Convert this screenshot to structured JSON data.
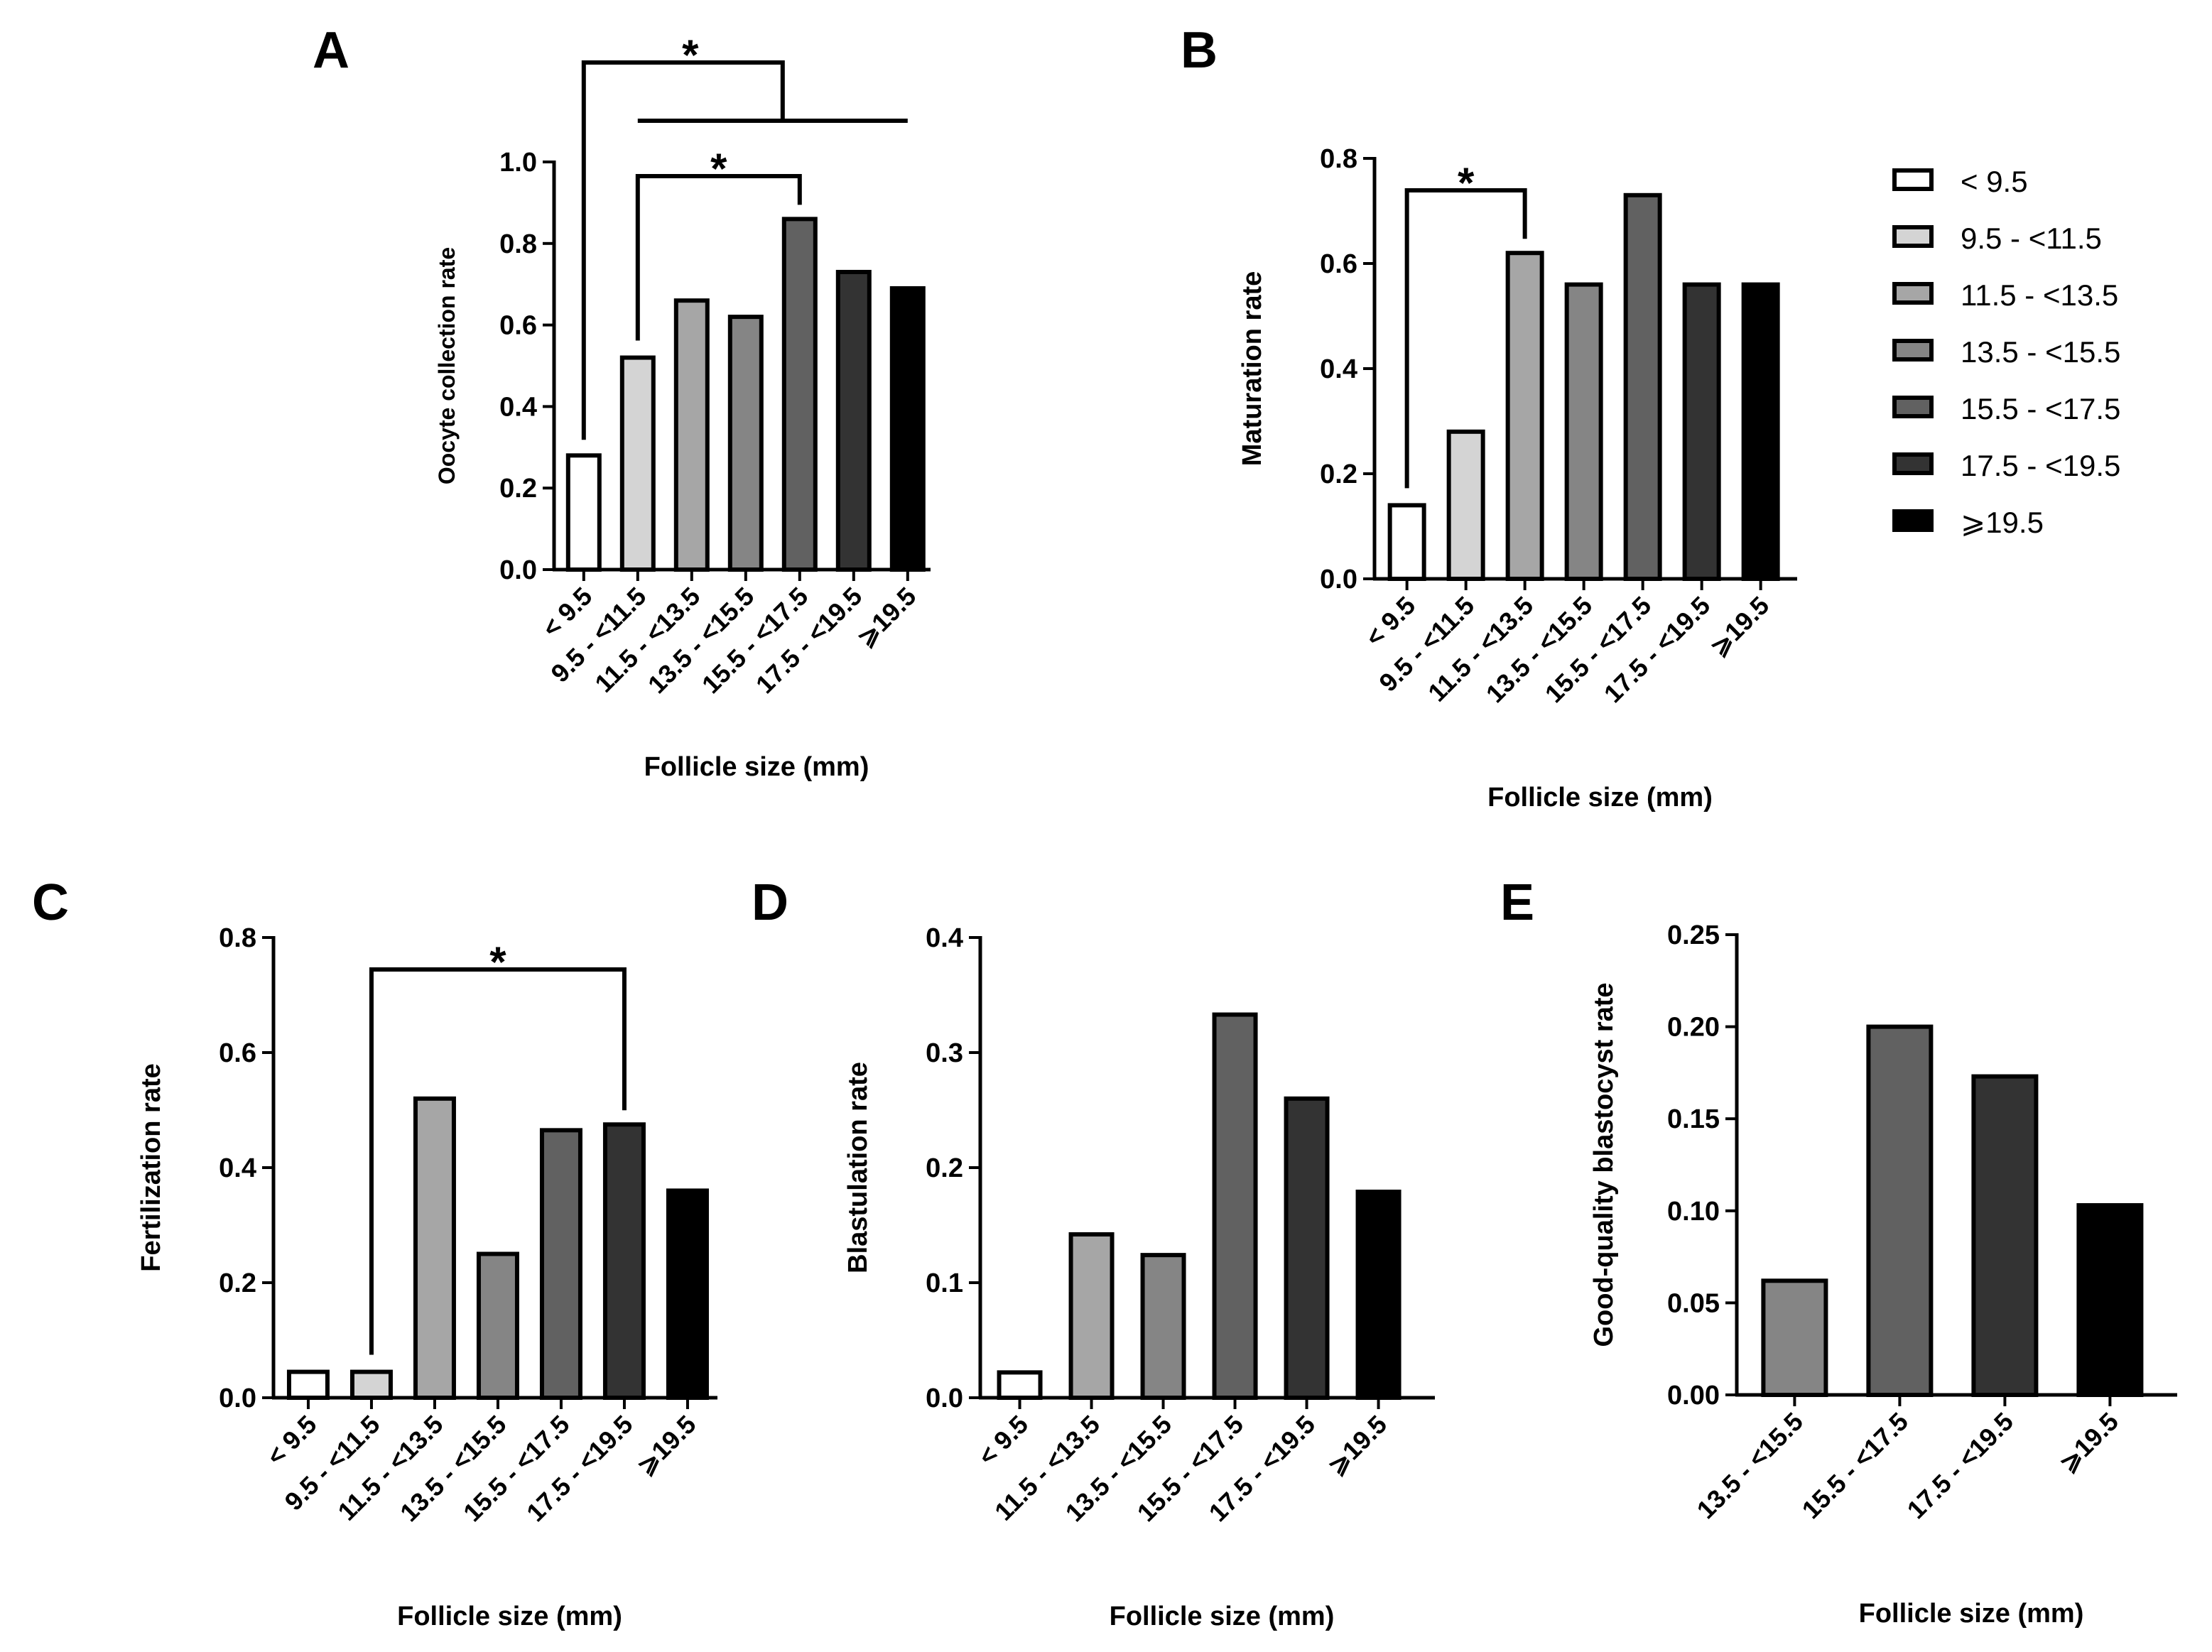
{
  "legend": {
    "title": "",
    "items": [
      {
        "label": "< 9.5",
        "color": "#ffffff"
      },
      {
        "label": "9.5 - <11.5",
        "color": "#d4d4d4"
      },
      {
        "label": "11.5 - <13.5",
        "color": "#a6a6a6"
      },
      {
        "label": "13.5 - <15.5",
        "color": "#858585"
      },
      {
        "label": "15.5 - <17.5",
        "color": "#616161"
      },
      {
        "label": "17.5 - <19.5",
        "color": "#333333"
      },
      {
        "label": "⩾19.5",
        "color": "#000000"
      }
    ]
  },
  "chart_data": [
    {
      "panel": "A",
      "type": "bar",
      "title": "",
      "xlabel": "Follicle size (mm)",
      "ylabel": "Oocyte collection rate",
      "ylim": [
        0,
        1.0
      ],
      "yticks": [
        "0.0",
        "0.2",
        "0.4",
        "0.6",
        "0.8",
        "1.0"
      ],
      "categories": [
        "< 9.5",
        "9.5 - <11.5",
        "11.5 - <13.5",
        "13.5 - <15.5",
        "15.5 - <17.5",
        "17.5 - <19.5",
        "⩾19.5"
      ],
      "values": [
        0.28,
        0.52,
        0.66,
        0.62,
        0.86,
        0.73,
        0.69
      ],
      "significance": [
        {
          "from_index": 0,
          "to_group": [
            1,
            6
          ],
          "label": "*"
        },
        {
          "from_index": 1,
          "to_index": 4,
          "label": "*"
        }
      ]
    },
    {
      "panel": "B",
      "type": "bar",
      "title": "",
      "xlabel": "Follicle size (mm)",
      "ylabel": "Maturation rate",
      "ylim": [
        0,
        0.8
      ],
      "yticks": [
        "0.0",
        "0.2",
        "0.4",
        "0.6",
        "0.8"
      ],
      "categories": [
        "< 9.5",
        "9.5 - <11.5",
        "11.5 - <13.5",
        "13.5 - <15.5",
        "15.5 - <17.5",
        "17.5 - <19.5",
        "⩾19.5"
      ],
      "values": [
        0.14,
        0.28,
        0.62,
        0.56,
        0.73,
        0.56,
        0.56
      ],
      "significance": [
        {
          "from_index": 0,
          "to_index": 2,
          "label": "*"
        }
      ]
    },
    {
      "panel": "C",
      "type": "bar",
      "title": "",
      "xlabel": "Follicle size (mm)",
      "ylabel": "Fertilization rate",
      "ylim": [
        0,
        0.8
      ],
      "yticks": [
        "0.0",
        "0.2",
        "0.4",
        "0.6",
        "0.8"
      ],
      "categories": [
        "< 9.5",
        "9.5 - <11.5",
        "11.5 - <13.5",
        "13.5 - <15.5",
        "15.5 - <17.5",
        "17.5 - <19.5",
        "⩾19.5"
      ],
      "values": [
        0.045,
        0.045,
        0.52,
        0.25,
        0.465,
        0.475,
        0.36
      ],
      "significance": [
        {
          "from_index": 1,
          "to_index": 5,
          "label": "*"
        }
      ]
    },
    {
      "panel": "D",
      "type": "bar",
      "title": "",
      "xlabel": "Follicle size (mm)",
      "ylabel": "Blastulation rate",
      "ylim": [
        0,
        0.4
      ],
      "yticks": [
        "0.0",
        "0.1",
        "0.2",
        "0.3",
        "0.4"
      ],
      "categories": [
        "< 9.5",
        "11.5 - <13.5",
        "13.5 - <15.5",
        "15.5 - <17.5",
        "17.5 - <19.5",
        "⩾19.5"
      ],
      "legend_index": [
        0,
        2,
        3,
        4,
        5,
        6
      ],
      "values": [
        0.022,
        0.142,
        0.124,
        0.333,
        0.26,
        0.179
      ],
      "significance": []
    },
    {
      "panel": "E",
      "type": "bar",
      "title": "",
      "xlabel": "Follicle size (mm)",
      "ylabel": "Good-quality blastocyst rate",
      "ylim": [
        0,
        0.25
      ],
      "yticks": [
        "0.00",
        "0.05",
        "0.10",
        "0.15",
        "0.20",
        "0.25"
      ],
      "categories": [
        "13.5 - <15.5",
        "15.5 - <17.5",
        "17.5 - <19.5",
        "⩾19.5"
      ],
      "legend_index": [
        3,
        4,
        5,
        6
      ],
      "values": [
        0.062,
        0.2,
        0.173,
        0.103
      ],
      "significance": []
    }
  ]
}
